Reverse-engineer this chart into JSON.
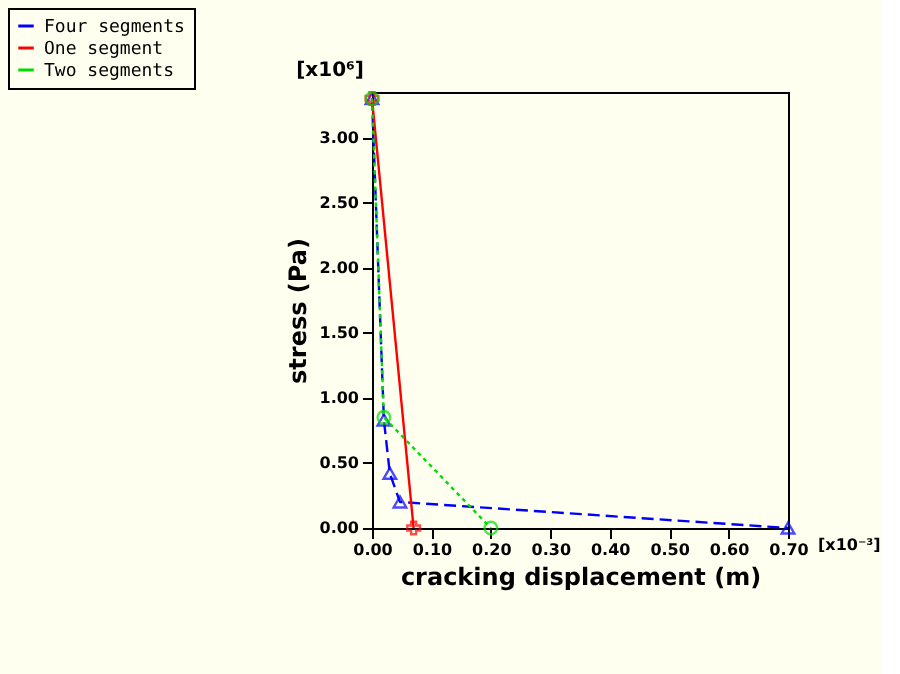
{
  "chart_data": {
    "type": "line",
    "xlabel": "cracking displacement (m)",
    "ylabel": "stress (Pa)",
    "annotations": [
      "[x10⁶]",
      "[x10⁻³]"
    ],
    "series": [
      {
        "name": "Four segments",
        "color": "#0000ff",
        "line_style": "dashed",
        "marker": "triangle",
        "x": [
          0,
          0.02,
          0.03,
          0.047,
          0.7
        ],
        "values": [
          3.3,
          0.83,
          0.42,
          0.2,
          0
        ]
      },
      {
        "name": "One segment",
        "color": "#ff0000",
        "line_style": "solid",
        "marker": "cross",
        "x": [
          0,
          0.07
        ],
        "values": [
          3.3,
          0
        ]
      },
      {
        "name": "Two segments",
        "color": "#00dd00",
        "line_style": "dotted",
        "marker": "circle",
        "x": [
          0,
          0.02,
          0.2
        ],
        "values": [
          3.3,
          0.85,
          0
        ]
      }
    ],
    "xlim": [
      0,
      0.7
    ],
    "xticks": [
      {
        "value": 0,
        "label": "0.00"
      },
      {
        "value": 0.1,
        "label": "0.10"
      },
      {
        "value": 0.2,
        "label": "0.20"
      },
      {
        "value": 0.3,
        "label": "0.30"
      },
      {
        "value": 0.4,
        "label": "0.40"
      },
      {
        "value": 0.5,
        "label": "0.50"
      },
      {
        "value": 0.6,
        "label": "0.60"
      },
      {
        "value": 0.7,
        "label": "0.70"
      }
    ],
    "ylim": [
      0,
      3.35
    ],
    "yticks": [
      {
        "value": 0,
        "label": "0.00"
      },
      {
        "value": 0.5,
        "label": "0.50"
      },
      {
        "value": 1,
        "label": "1.00"
      },
      {
        "value": 1.5,
        "label": "1.50"
      },
      {
        "value": 2,
        "label": "2.00"
      },
      {
        "value": 2.5,
        "label": "2.50"
      },
      {
        "value": 3,
        "label": "3.00"
      }
    ],
    "grid": false,
    "legend": "top left"
  }
}
